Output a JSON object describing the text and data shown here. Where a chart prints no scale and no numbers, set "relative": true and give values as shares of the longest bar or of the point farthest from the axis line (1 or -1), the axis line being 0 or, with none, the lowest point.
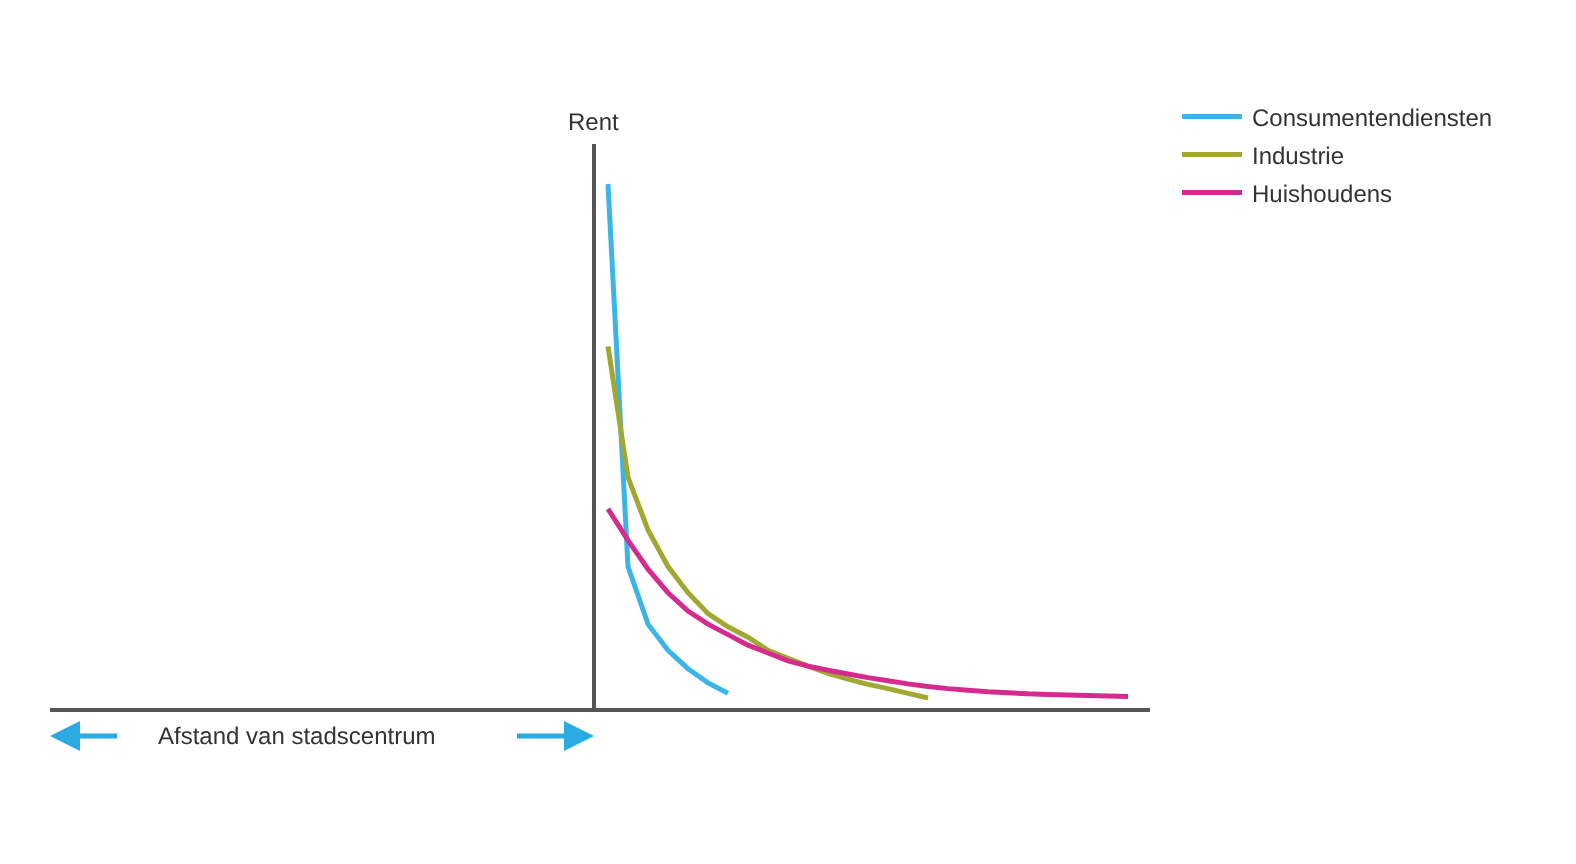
{
  "chart_data": {
    "type": "line",
    "relative": true,
    "ylabel": "Rent",
    "annotations": [
      "Afstand van stadscentrum"
    ],
    "legend": "top right",
    "marker": "none",
    "line_style": "solid",
    "categories": [
      null,
      null,
      null,
      null,
      null,
      null,
      null,
      null,
      null,
      null,
      null,
      null,
      null,
      null,
      null,
      null,
      null,
      null,
      null,
      null,
      null,
      null,
      null,
      null,
      null,
      null,
      null,
      null
    ],
    "series": [
      {
        "name": "Consumentendiensten",
        "color": "#3bb5e8",
        "values": [
          1.0,
          0.27,
          0.16,
          0.11,
          0.075,
          0.048,
          0.028,
          null,
          null,
          null,
          null,
          null,
          null,
          null,
          null,
          null,
          null,
          null,
          null,
          null,
          null,
          null,
          null,
          null,
          null,
          null,
          null,
          null
        ]
      },
      {
        "name": "Industrie",
        "color": "#a0a832",
        "values": [
          0.69,
          0.44,
          0.34,
          0.27,
          0.22,
          0.18,
          0.155,
          0.135,
          0.11,
          0.095,
          0.08,
          0.066,
          0.055,
          0.045,
          0.037,
          0.028,
          0.019,
          null,
          null,
          null,
          null,
          null,
          null,
          null,
          null,
          null,
          null,
          null
        ]
      },
      {
        "name": "Huishoudens",
        "color": "#d62b8e",
        "values": [
          0.38,
          0.32,
          0.265,
          0.22,
          0.185,
          0.16,
          0.14,
          0.12,
          0.105,
          0.09,
          0.08,
          0.072,
          0.065,
          0.058,
          0.052,
          0.046,
          0.041,
          0.037,
          0.034,
          0.031,
          0.029,
          0.027,
          0.026,
          0.025,
          0.024,
          0.023,
          0.022,
          null
        ]
      }
    ]
  }
}
